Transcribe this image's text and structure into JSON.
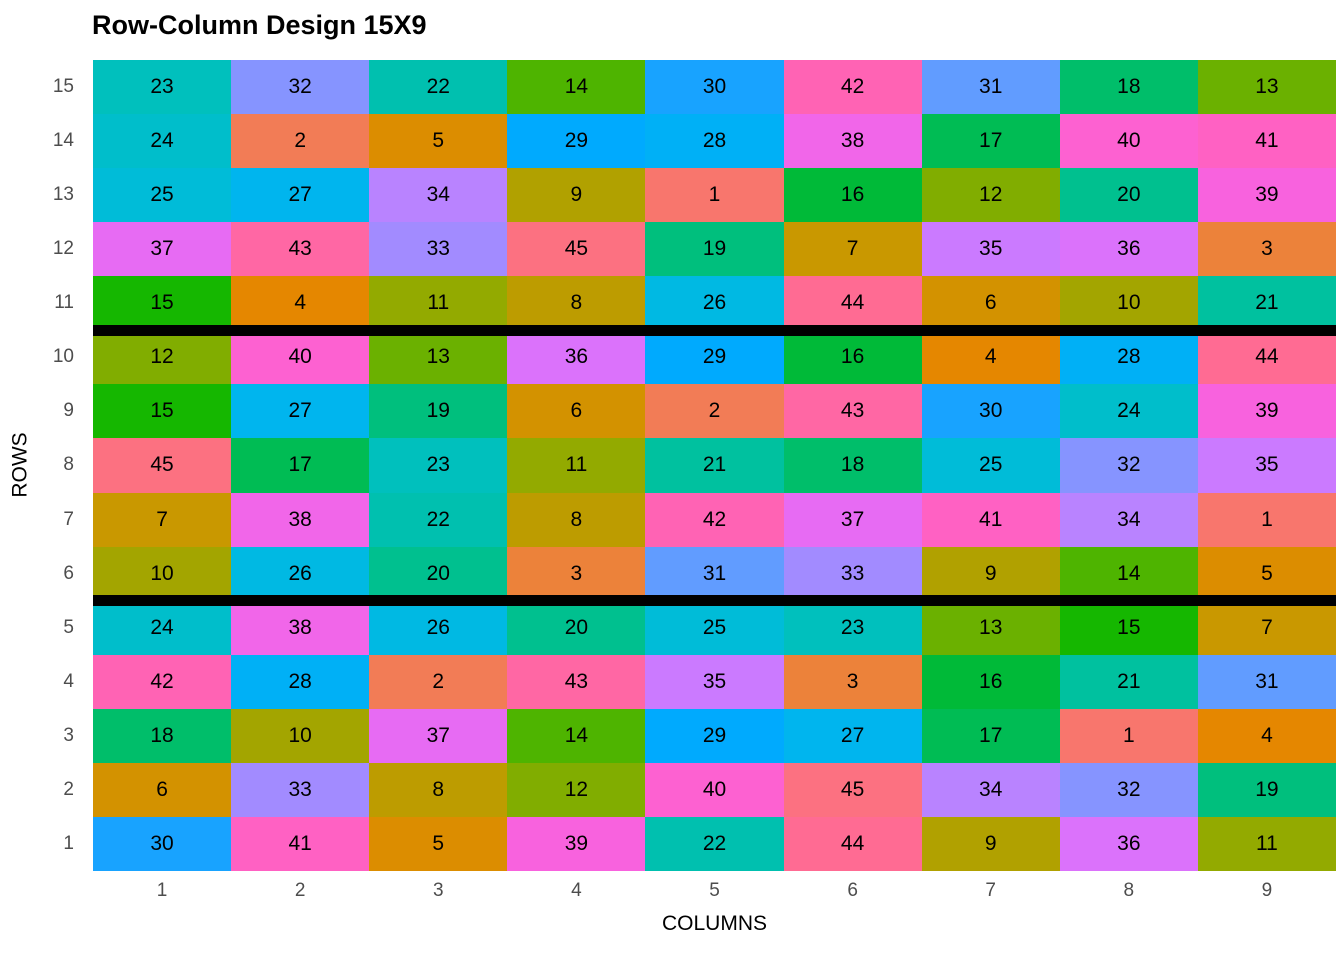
{
  "title": "Row-Column Design 15X9",
  "chart_data": {
    "type": "heatmap",
    "title": "Row-Column Design 15X9",
    "xlabel": "COLUMNS",
    "ylabel": "ROWS",
    "row_labels": [
      15,
      14,
      13,
      12,
      11,
      10,
      9,
      8,
      7,
      6,
      5,
      4,
      3,
      2,
      1
    ],
    "col_labels": [
      1,
      2,
      3,
      4,
      5,
      6,
      7,
      8,
      9
    ],
    "grid": [
      [
        23,
        32,
        22,
        14,
        30,
        42,
        31,
        18,
        13
      ],
      [
        24,
        2,
        5,
        29,
        28,
        38,
        17,
        40,
        41
      ],
      [
        25,
        27,
        34,
        9,
        1,
        16,
        12,
        20,
        39
      ],
      [
        37,
        43,
        33,
        45,
        19,
        7,
        35,
        36,
        3
      ],
      [
        15,
        4,
        11,
        8,
        26,
        44,
        6,
        10,
        21
      ],
      [
        12,
        40,
        13,
        36,
        29,
        16,
        4,
        28,
        44
      ],
      [
        15,
        27,
        19,
        6,
        2,
        43,
        30,
        24,
        39
      ],
      [
        45,
        17,
        23,
        11,
        21,
        18,
        25,
        32,
        35
      ],
      [
        7,
        38,
        22,
        8,
        42,
        37,
        41,
        34,
        1
      ],
      [
        10,
        26,
        20,
        3,
        31,
        33,
        9,
        14,
        5
      ],
      [
        24,
        38,
        26,
        20,
        25,
        23,
        13,
        15,
        7
      ],
      [
        42,
        28,
        2,
        43,
        35,
        3,
        16,
        21,
        31
      ],
      [
        18,
        10,
        37,
        14,
        29,
        27,
        17,
        1,
        4
      ],
      [
        6,
        33,
        8,
        12,
        40,
        45,
        34,
        32,
        19
      ],
      [
        30,
        41,
        5,
        39,
        22,
        44,
        9,
        36,
        11
      ]
    ],
    "block_separators_after_display_rows": [
      5,
      10
    ],
    "palette": {
      "model": "ggplot2-hcl-hue",
      "levels": 45,
      "hue_start": 15,
      "hue_step": 8,
      "chroma": 100,
      "luminance": 65,
      "example_colors": {
        "treatment_1": "#F8766D",
        "treatment_31": "#619CFF"
      }
    },
    "colors": {
      "background": "#FFFFFF",
      "title_text": "#000000",
      "cell_text": "#000000",
      "axis_tick_text": "#4D4D4D",
      "axis_title_text": "#000000",
      "separator_line": "#000000"
    },
    "layout_hints": {
      "grid_lines": "off",
      "legend": "none",
      "axis_ticks": "none"
    }
  }
}
